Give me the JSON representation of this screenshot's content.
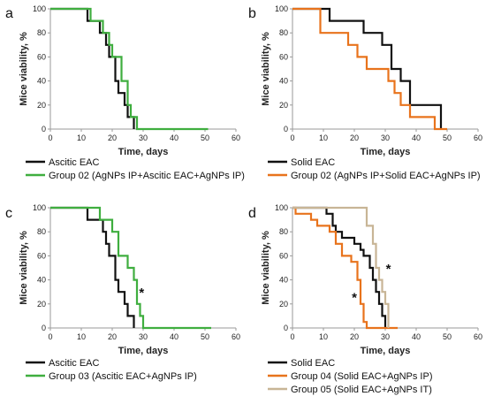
{
  "colors": {
    "black": "#111111",
    "green": "#3fae3f",
    "orange": "#e8731c",
    "tan": "#c8b596",
    "axis": "#9a9a9a"
  },
  "chart_data": [
    {
      "panel": "a",
      "type": "line",
      "xlabel": "Time, days",
      "ylabel": "Mice viability, %",
      "xlim": [
        0,
        60
      ],
      "ylim": [
        0,
        100
      ],
      "xticks": [
        0,
        10,
        20,
        30,
        40,
        50,
        60
      ],
      "yticks": [
        0,
        20,
        40,
        60,
        80,
        100
      ],
      "annotations": [],
      "series": [
        {
          "name": "Ascitic EAC",
          "color": "black",
          "x": [
            0,
            12,
            12,
            16,
            16,
            18,
            18,
            19,
            19,
            21,
            21,
            22,
            22,
            24,
            24,
            25,
            25,
            27,
            27
          ],
          "y": [
            100,
            100,
            90,
            90,
            80,
            80,
            70,
            70,
            60,
            60,
            40,
            40,
            30,
            30,
            20,
            20,
            10,
            10,
            0
          ]
        },
        {
          "name": "Group 02 (AgNPs IP+Ascitic EAC+AgNPs IP)",
          "color": "green",
          "x": [
            0,
            13,
            13,
            17,
            17,
            19,
            19,
            20,
            20,
            23,
            23,
            25,
            25,
            26,
            26,
            28,
            28,
            51
          ],
          "y": [
            100,
            100,
            90,
            90,
            80,
            80,
            70,
            70,
            60,
            60,
            40,
            40,
            20,
            20,
            10,
            10,
            0,
            0
          ]
        }
      ]
    },
    {
      "panel": "b",
      "type": "line",
      "xlabel": "Time, days",
      "ylabel": "Mice viability, %",
      "xlim": [
        0,
        60
      ],
      "ylim": [
        0,
        100
      ],
      "xticks": [
        0,
        10,
        20,
        30,
        40,
        50,
        60
      ],
      "yticks": [
        0,
        20,
        40,
        60,
        80,
        100
      ],
      "annotations": [],
      "series": [
        {
          "name": "Solid EAC",
          "color": "black",
          "x": [
            0,
            12,
            12,
            23,
            23,
            29,
            29,
            32,
            32,
            35,
            35,
            38,
            38,
            48,
            48
          ],
          "y": [
            100,
            100,
            90,
            90,
            80,
            80,
            70,
            70,
            50,
            50,
            40,
            40,
            20,
            20,
            0
          ]
        },
        {
          "name": "Group 02 (AgNPs IP+Solid EAC+AgNPs IP)",
          "color": "orange",
          "x": [
            0,
            9,
            9,
            18,
            18,
            21,
            21,
            24,
            24,
            31,
            31,
            33,
            33,
            35,
            35,
            38,
            38,
            40,
            40,
            46,
            46,
            50,
            50
          ],
          "y": [
            100,
            100,
            80,
            80,
            70,
            70,
            60,
            60,
            50,
            50,
            40,
            40,
            30,
            30,
            20,
            20,
            10,
            10,
            10,
            10,
            0,
            0,
            0
          ]
        }
      ]
    },
    {
      "panel": "c",
      "type": "line",
      "xlabel": "Time, days",
      "ylabel": "Mice viability, %",
      "xlim": [
        0,
        60
      ],
      "ylim": [
        0,
        100
      ],
      "xticks": [
        0,
        10,
        20,
        30,
        40,
        50,
        60
      ],
      "yticks": [
        0,
        20,
        40,
        60,
        80,
        100
      ],
      "annotations": [
        {
          "text": "*",
          "x": 29.5,
          "y": 30
        }
      ],
      "series": [
        {
          "name": "Ascitic EAC",
          "color": "black",
          "x": [
            0,
            12,
            12,
            17,
            17,
            18,
            18,
            19,
            19,
            21,
            21,
            22,
            22,
            24,
            24,
            25,
            25,
            27,
            27
          ],
          "y": [
            100,
            100,
            90,
            90,
            80,
            80,
            70,
            70,
            60,
            60,
            40,
            40,
            30,
            30,
            20,
            20,
            10,
            10,
            0
          ]
        },
        {
          "name": "Group 03 (Ascitic EAC+AgNPs IP)",
          "color": "green",
          "x": [
            0,
            16,
            16,
            20,
            20,
            22,
            22,
            25,
            25,
            27,
            27,
            28,
            28,
            29,
            29,
            30,
            30,
            52
          ],
          "y": [
            100,
            100,
            90,
            90,
            80,
            80,
            60,
            60,
            50,
            50,
            40,
            40,
            20,
            20,
            10,
            10,
            0,
            0
          ]
        }
      ]
    },
    {
      "panel": "d",
      "type": "line",
      "xlabel": "Time, days",
      "ylabel": "Mice viability, %",
      "xlim": [
        0,
        60
      ],
      "ylim": [
        0,
        100
      ],
      "xticks": [
        0,
        10,
        20,
        30,
        40,
        50,
        60
      ],
      "yticks": [
        0,
        20,
        40,
        60,
        80,
        100
      ],
      "annotations": [
        {
          "text": "*",
          "x": 20,
          "y": 26
        },
        {
          "text": "*",
          "x": 31,
          "y": 50
        }
      ],
      "series": [
        {
          "name": "Solid EAC",
          "color": "black",
          "x": [
            0,
            11,
            11,
            13,
            13,
            14,
            14,
            16,
            16,
            17,
            17,
            20,
            20,
            22,
            22,
            23,
            23,
            25,
            25,
            26,
            26,
            27,
            27,
            28,
            28,
            29,
            29,
            30,
            30
          ],
          "y": [
            100,
            100,
            95,
            95,
            85,
            85,
            80,
            80,
            75,
            75,
            75,
            75,
            70,
            70,
            65,
            65,
            60,
            60,
            50,
            50,
            40,
            40,
            30,
            30,
            20,
            20,
            10,
            10,
            0
          ]
        },
        {
          "name": "Group 04 (Solid EAC+AgNPs IP)",
          "color": "orange",
          "x": [
            0,
            1,
            1,
            6,
            6,
            8,
            8,
            12,
            12,
            14,
            14,
            16,
            16,
            19,
            19,
            21,
            21,
            22,
            22,
            23,
            23,
            24,
            24,
            34
          ],
          "y": [
            100,
            100,
            95,
            95,
            90,
            90,
            85,
            85,
            80,
            80,
            70,
            70,
            60,
            60,
            55,
            55,
            40,
            40,
            20,
            20,
            5,
            5,
            0,
            0
          ]
        },
        {
          "name": "Group 05 (Solid EAC+AgNPs IT)",
          "color": "tan",
          "x": [
            0,
            24,
            24,
            26,
            26,
            27,
            27,
            28,
            28,
            29,
            29,
            30,
            30,
            31,
            31
          ],
          "y": [
            100,
            100,
            85,
            85,
            70,
            70,
            50,
            50,
            40,
            40,
            30,
            30,
            20,
            20,
            0
          ]
        }
      ]
    }
  ]
}
